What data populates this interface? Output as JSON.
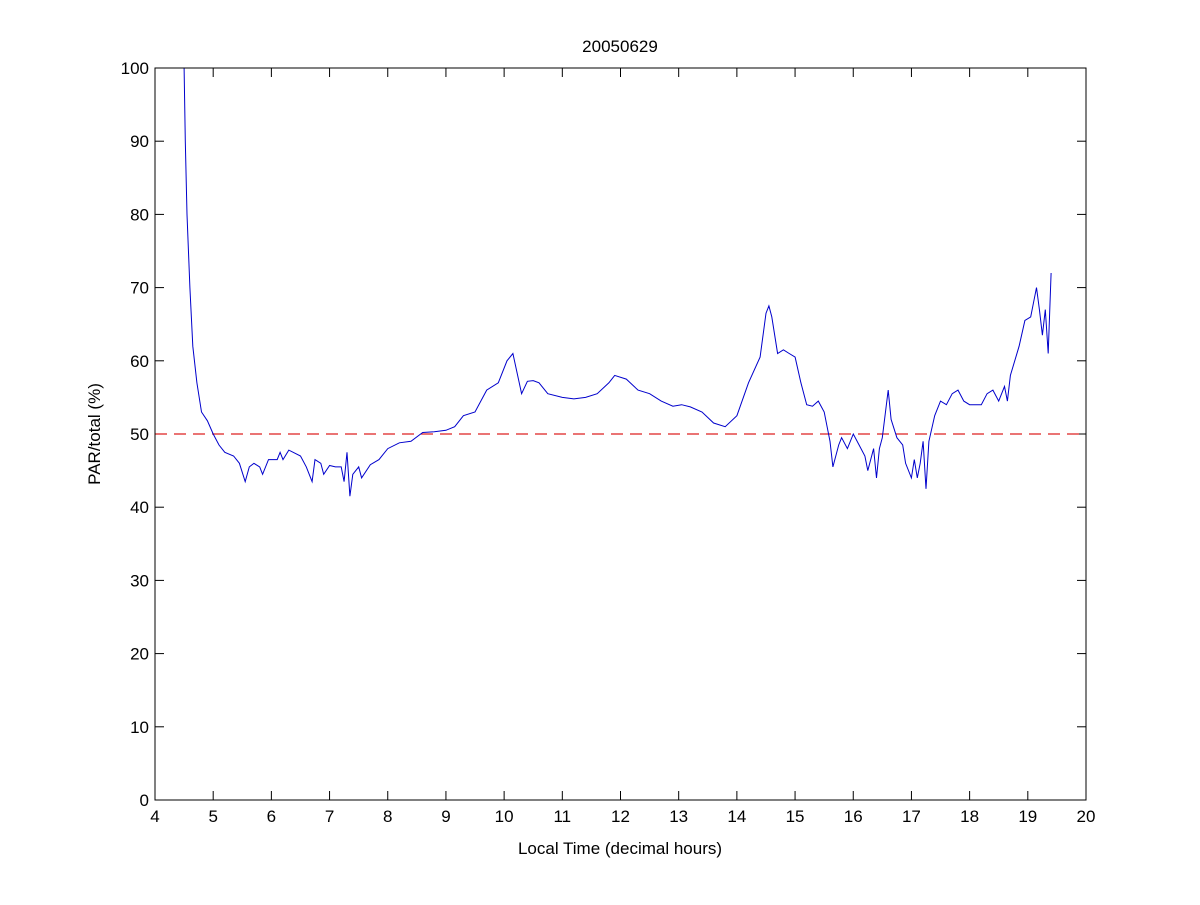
{
  "chart_data": {
    "type": "line",
    "title": "20050629",
    "xlabel": "Local Time (decimal hours)",
    "ylabel": "PAR/total (%)",
    "xlim": [
      4,
      20
    ],
    "ylim": [
      0,
      100
    ],
    "xticks": [
      4,
      5,
      6,
      7,
      8,
      9,
      10,
      11,
      12,
      13,
      14,
      15,
      16,
      17,
      18,
      19,
      20
    ],
    "yticks": [
      0,
      10,
      20,
      30,
      40,
      50,
      60,
      70,
      80,
      90,
      100
    ],
    "grid": false,
    "colors": {
      "series": "#0000cc",
      "reference": "#dd2222",
      "axes": "#000000"
    },
    "reference_line": {
      "y": 50,
      "style": "dashed"
    },
    "series": [
      {
        "x": [
          4.5,
          4.52,
          4.55,
          4.6,
          4.65,
          4.72,
          4.8,
          4.9,
          5.0,
          5.1,
          5.2,
          5.35,
          5.45,
          5.55,
          5.62,
          5.7,
          5.8,
          5.85,
          5.95,
          6.1,
          6.15,
          6.2,
          6.3,
          6.5,
          6.6,
          6.7,
          6.75,
          6.85,
          6.9,
          7.0,
          7.1,
          7.2,
          7.25,
          7.3,
          7.35,
          7.4,
          7.5,
          7.55,
          7.7,
          7.85,
          8.0,
          8.2,
          8.4,
          8.6,
          8.8,
          9.0,
          9.15,
          9.3,
          9.5,
          9.7,
          9.9,
          10.05,
          10.15,
          10.3,
          10.4,
          10.5,
          10.6,
          10.75,
          11.0,
          11.2,
          11.4,
          11.6,
          11.8,
          11.9,
          12.1,
          12.3,
          12.5,
          12.7,
          12.9,
          13.05,
          13.2,
          13.4,
          13.6,
          13.8,
          14.0,
          14.2,
          14.4,
          14.5,
          14.55,
          14.6,
          14.7,
          14.8,
          14.9,
          15.0,
          15.1,
          15.2,
          15.3,
          15.4,
          15.5,
          15.6,
          15.65,
          15.75,
          15.8,
          15.9,
          16.0,
          16.1,
          16.2,
          16.25,
          16.35,
          16.4,
          16.45,
          16.5,
          16.6,
          16.65,
          16.75,
          16.85,
          16.9,
          17.0,
          17.05,
          17.1,
          17.15,
          17.2,
          17.25,
          17.3,
          17.4,
          17.5,
          17.6,
          17.7,
          17.8,
          17.9,
          18.0,
          18.2,
          18.3,
          18.4,
          18.5,
          18.6,
          18.65,
          18.7,
          18.85,
          18.95,
          19.05,
          19.1,
          19.15,
          19.2,
          19.25,
          19.3,
          19.35,
          19.4
        ],
        "y": [
          100,
          90,
          80,
          70,
          62,
          57,
          53,
          51.8,
          50,
          48.5,
          47.5,
          47,
          46,
          43.5,
          45.5,
          46,
          45.5,
          44.5,
          46.5,
          46.5,
          47.5,
          46.5,
          47.8,
          47,
          45.5,
          43.5,
          46.5,
          46,
          44.5,
          45.7,
          45.5,
          45.5,
          43.5,
          47.5,
          41.5,
          44.5,
          45.5,
          44,
          45.8,
          46.5,
          48,
          48.8,
          49,
          50.2,
          50.3,
          50.5,
          51,
          52.5,
          53,
          56,
          57,
          60,
          61,
          55.5,
          57.2,
          57.3,
          57,
          55.5,
          55,
          54.8,
          55,
          55.5,
          57,
          58,
          57.5,
          56,
          55.5,
          54.5,
          53.8,
          54,
          53.7,
          53,
          51.5,
          51,
          52.5,
          57,
          60.5,
          66.5,
          67.5,
          66,
          61,
          61.5,
          61,
          60.5,
          57,
          54,
          53.8,
          54.5,
          53,
          49,
          45.5,
          48.5,
          49.5,
          48,
          50,
          48.5,
          47,
          45,
          48,
          44,
          48,
          49.5,
          56,
          52,
          49.5,
          48.5,
          46,
          44,
          46.5,
          44,
          46,
          49,
          42.5,
          49,
          52.5,
          54.5,
          54,
          55.5,
          56,
          54.5,
          54,
          54,
          55.5,
          56,
          54.5,
          56.5,
          54.5,
          58,
          62,
          65.5,
          66,
          68,
          70,
          67,
          63.5,
          67,
          61,
          72
        ]
      }
    ]
  }
}
